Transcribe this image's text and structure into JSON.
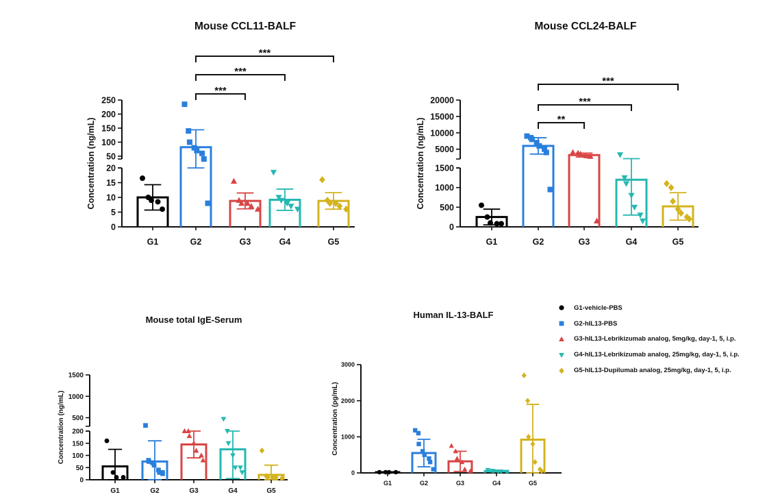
{
  "colors": {
    "G1": "#000000",
    "G2": "#2a7fdd",
    "G3": "#d94545",
    "G4": "#24b8b1",
    "G5": "#d4b31e"
  },
  "legend": [
    {
      "group": "G1",
      "label": "G1-vehicle-PBS",
      "marker": "circle"
    },
    {
      "group": "G2",
      "label": "G2-hIL13-PBS",
      "marker": "square"
    },
    {
      "group": "G3",
      "label": "G3-hIL13-Lebrikizumab analog, 5mg/kg, day-1, 5, i.p.",
      "marker": "triangle-up"
    },
    {
      "group": "G4",
      "label": "G4-hIL13-Lebrikizumab analog, 25mg/kg, day-1, 5, i.p.",
      "marker": "triangle-down"
    },
    {
      "group": "G5",
      "label": "G5-hIL13-Dupilumab analog, 25mg/kg, day-1, 5, i.p.",
      "marker": "diamond"
    }
  ],
  "chart_data": [
    {
      "id": "ccl11",
      "type": "bar",
      "title": "Mouse CCL11-BALF",
      "ylabel": "Concentration (ng/mL)",
      "categories": [
        "G1",
        "G2",
        "G3",
        "G4",
        "G5"
      ],
      "axis_segments": [
        {
          "range": [
            0,
            20
          ],
          "ticks": [
            0,
            5,
            10,
            15,
            20
          ]
        },
        {
          "range": [
            40,
            250
          ],
          "ticks": [
            50,
            100,
            150,
            200,
            250
          ]
        }
      ],
      "broken_axis": true,
      "values": [
        10,
        82,
        8.8,
        9.2,
        8.8
      ],
      "sd": [
        4.3,
        62,
        2.7,
        3.6,
        2.8
      ],
      "points": [
        [
          16.5,
          10,
          9,
          8.5,
          6
        ],
        [
          235,
          140,
          100,
          80,
          70,
          60,
          40,
          8
        ],
        [
          15.5,
          9,
          8,
          8,
          7,
          6
        ],
        [
          18.5,
          10,
          9,
          8,
          7,
          6
        ],
        [
          16,
          9,
          8,
          8,
          7,
          6
        ]
      ],
      "significance": [
        {
          "from": "G2",
          "to": "G3",
          "label": "***"
        },
        {
          "from": "G2",
          "to": "G4",
          "label": "***"
        },
        {
          "from": "G2",
          "to": "G5",
          "label": "***"
        }
      ]
    },
    {
      "id": "ccl24",
      "type": "bar",
      "title": "Mouse CCL24-BALF",
      "ylabel": "Concentration (ng/mL)",
      "categories": [
        "G1",
        "G2",
        "G3",
        "G4",
        "G5"
      ],
      "axis_segments": [
        {
          "range": [
            0,
            1500
          ],
          "ticks": [
            0,
            500,
            1000,
            1500
          ]
        },
        {
          "range": [
            2000,
            20000
          ],
          "ticks": [
            5000,
            10000,
            15000,
            20000
          ]
        }
      ],
      "broken_axis": true,
      "values": [
        250,
        6000,
        3200,
        1200,
        520
      ],
      "sd": [
        200,
        2500,
        600,
        900,
        350
      ],
      "points": [
        [
          550,
          250,
          100,
          80,
          80
        ],
        [
          9000,
          8500,
          8000,
          7000,
          6000,
          5000,
          4000,
          950
        ],
        [
          4000,
          3800,
          3500,
          3000,
          2800,
          150
        ],
        [
          3300,
          1250,
          1100,
          800,
          500,
          300,
          150
        ],
        [
          1100,
          1000,
          650,
          450,
          350,
          250,
          200
        ]
      ],
      "significance": [
        {
          "from": "G2",
          "to": "G3",
          "label": "**"
        },
        {
          "from": "G2",
          "to": "G4",
          "label": "***"
        },
        {
          "from": "G2",
          "to": "G5",
          "label": "***"
        }
      ]
    },
    {
      "id": "ige",
      "type": "bar",
      "title": "Mouse total IgE-Serum",
      "ylabel": "Concentration (ng/mL)",
      "categories": [
        "G1",
        "G2",
        "G3",
        "G4",
        "G5"
      ],
      "axis_segments": [
        {
          "range": [
            0,
            200
          ],
          "ticks": [
            0,
            50,
            100,
            150,
            200
          ]
        },
        {
          "range": [
            300,
            1500
          ],
          "ticks": [
            500,
            1000,
            1500
          ]
        }
      ],
      "broken_axis": true,
      "values": [
        55,
        75,
        145,
        125,
        20
      ],
      "sd": [
        70,
        85,
        55,
        120,
        40
      ],
      "points": [
        [
          160,
          30,
          10,
          10
        ],
        [
          320,
          80,
          75,
          70,
          60,
          40,
          30,
          30,
          25
        ],
        [
          280,
          260,
          180,
          150,
          120,
          100,
          80
        ],
        [
          470,
          200,
          150,
          100,
          50,
          50,
          30
        ],
        [
          120,
          15,
          10,
          10,
          10,
          5
        ]
      ],
      "significance": []
    },
    {
      "id": "il13",
      "type": "bar",
      "title": "Human IL-13-BALF",
      "ylabel": "Concentration (pg/mL)",
      "categories": [
        "G1",
        "G2",
        "G3",
        "G4",
        "G5"
      ],
      "axis_segments": [
        {
          "range": [
            0,
            3000
          ],
          "ticks": [
            0,
            1000,
            2000,
            3000
          ]
        }
      ],
      "broken_axis": false,
      "values": [
        20,
        550,
        320,
        50,
        920
      ],
      "sd": [
        10,
        380,
        280,
        20,
        980
      ],
      "points": [
        [
          20,
          20,
          20,
          20
        ],
        [
          1180,
          1100,
          800,
          600,
          500,
          400,
          300,
          100
        ],
        [
          750,
          600,
          400,
          300,
          100,
          50
        ],
        [
          80,
          60,
          50,
          40,
          40,
          30
        ],
        [
          2700,
          2000,
          1000,
          800,
          300,
          100,
          50
        ]
      ],
      "significance": []
    }
  ]
}
